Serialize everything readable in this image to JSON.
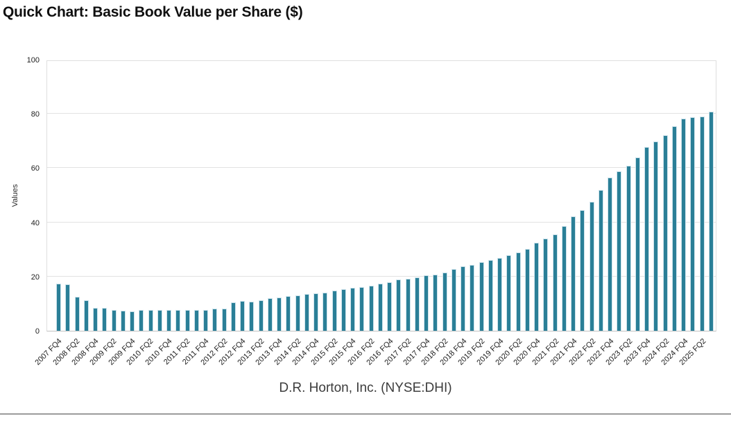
{
  "header": {
    "title": "Quick Chart: Basic Book Value per Share ($)"
  },
  "footer": {
    "company": "D.R. Horton, Inc. (NYSE:DHI)"
  },
  "colors": {
    "bar": "#2A7F97",
    "bar_edge": "#CDE3EC",
    "gridline": "#E2E2E2",
    "axis_border": "#C2C2C2",
    "title_text": "#0F0F0F",
    "tick_text": "#1C1C1C",
    "footer_text": "#3C3C3C",
    "bottom_rule": "#9B9B9B"
  },
  "chart_data": {
    "type": "bar",
    "title": "Quick Chart: Basic Book Value per Share ($)",
    "xlabel": "D.R. Horton, Inc. (NYSE:DHI)",
    "ylabel": "Values",
    "ylim": [
      0,
      100
    ],
    "yticks": [
      0,
      20,
      40,
      60,
      80,
      100
    ],
    "grid": true,
    "legend_position": "none",
    "bar_color": "#2A7F97",
    "tick_label_every": 2,
    "x_tick_labels": [
      "2007 FQ4",
      "2008 FQ2",
      "2008 FQ4",
      "2009 FQ2",
      "2009 FQ4",
      "2010 FQ2",
      "2010 FQ4",
      "2011 FQ2",
      "2011 FQ4",
      "2012 FQ2",
      "2012 FQ4",
      "2013 FQ2",
      "2013 FQ4",
      "2014 FQ2",
      "2014 FQ4",
      "2015 FQ2",
      "2015 FQ4",
      "2016 FQ2",
      "2016 FQ4",
      "2017 FQ2",
      "2017 FQ4",
      "2018 FQ2",
      "2018 FQ4",
      "2019 FQ2",
      "2019 FQ4",
      "2020 FQ2",
      "2020 FQ4",
      "2021 FQ2",
      "2021 FQ4",
      "2022 FQ2",
      "2022 FQ4",
      "2023 FQ2",
      "2023 FQ4",
      "2024 FQ2",
      "2024 FQ4",
      "2025 FQ2"
    ],
    "values": [
      17.4,
      17.2,
      12.5,
      11.2,
      8.4,
      8.4,
      7.7,
      7.4,
      7.2,
      7.7,
      7.7,
      7.8,
      7.6,
      7.6,
      7.7,
      7.8,
      7.8,
      8.3,
      8.2,
      10.4,
      11.0,
      10.8,
      11.2,
      12.0,
      12.3,
      12.8,
      13.0,
      13.5,
      13.8,
      14.1,
      14.8,
      15.3,
      15.9,
      16.2,
      16.5,
      17.4,
      18.0,
      18.8,
      19.2,
      19.8,
      20.4,
      20.8,
      21.5,
      22.7,
      23.8,
      24.2,
      25.4,
      26.0,
      26.9,
      27.9,
      28.8,
      30.3,
      32.5,
      34.0,
      35.6,
      38.5,
      42.1,
      44.5,
      47.6,
      52.0,
      56.6,
      58.7,
      60.8,
      64.0,
      67.8,
      69.7,
      72.2,
      75.4,
      78.3,
      78.7,
      79.1,
      80.8
    ]
  }
}
